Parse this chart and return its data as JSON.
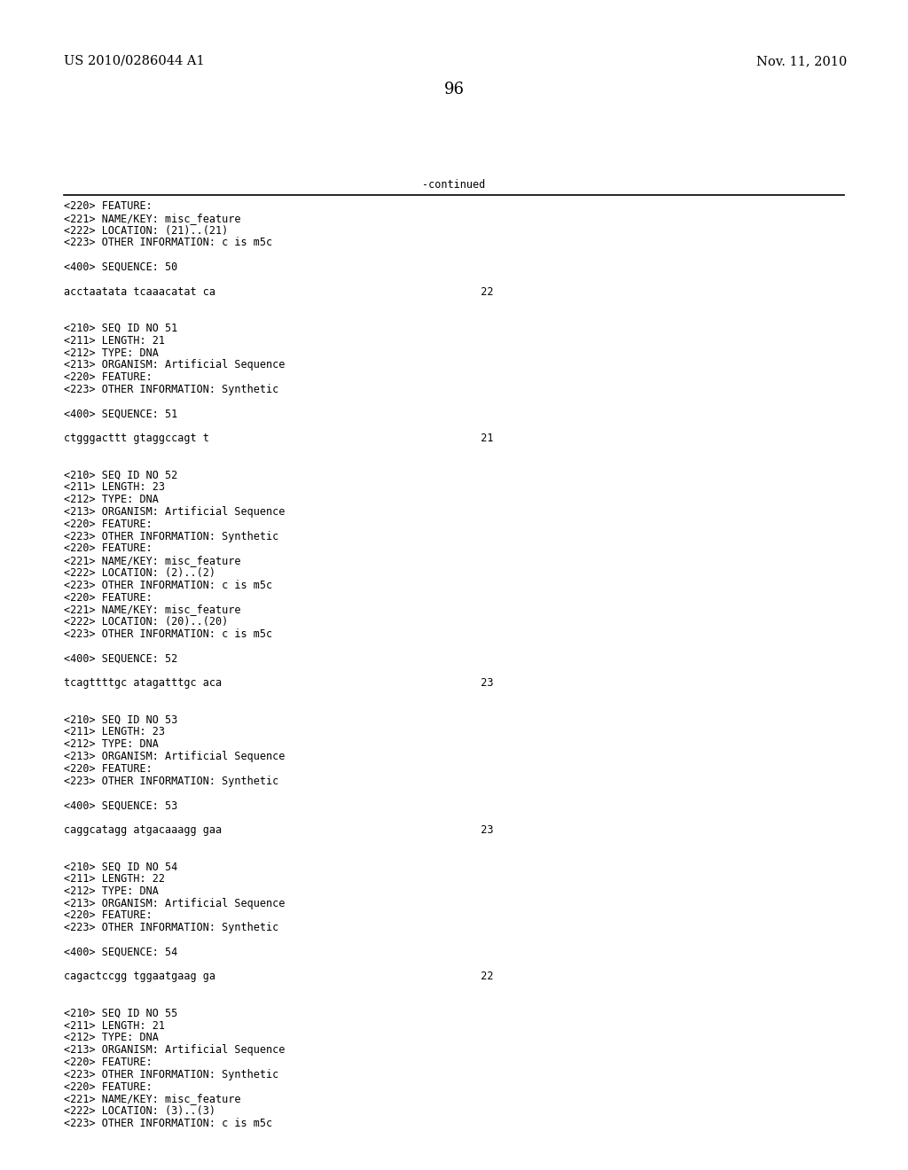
{
  "header_left": "US 2010/0286044 A1",
  "header_right": "Nov. 11, 2010",
  "page_number": "96",
  "continued_label": "-continued",
  "background_color": "#ffffff",
  "text_color": "#000000",
  "font_size_header": 10.5,
  "font_size_body": 8.5,
  "font_size_page": 13,
  "content_lines": [
    "<220> FEATURE:",
    "<221> NAME/KEY: misc_feature",
    "<222> LOCATION: (21)..(21)",
    "<223> OTHER INFORMATION: c is m5c",
    "",
    "<400> SEQUENCE: 50",
    "",
    "acctaatata tcaaacatat ca                                          22",
    "",
    "",
    "<210> SEQ ID NO 51",
    "<211> LENGTH: 21",
    "<212> TYPE: DNA",
    "<213> ORGANISM: Artificial Sequence",
    "<220> FEATURE:",
    "<223> OTHER INFORMATION: Synthetic",
    "",
    "<400> SEQUENCE: 51",
    "",
    "ctgggacttt gtaggccagt t                                           21",
    "",
    "",
    "<210> SEQ ID NO 52",
    "<211> LENGTH: 23",
    "<212> TYPE: DNA",
    "<213> ORGANISM: Artificial Sequence",
    "<220> FEATURE:",
    "<223> OTHER INFORMATION: Synthetic",
    "<220> FEATURE:",
    "<221> NAME/KEY: misc_feature",
    "<222> LOCATION: (2)..(2)",
    "<223> OTHER INFORMATION: c is m5c",
    "<220> FEATURE:",
    "<221> NAME/KEY: misc_feature",
    "<222> LOCATION: (20)..(20)",
    "<223> OTHER INFORMATION: c is m5c",
    "",
    "<400> SEQUENCE: 52",
    "",
    "tcagttttgc atagatttgc aca                                         23",
    "",
    "",
    "<210> SEQ ID NO 53",
    "<211> LENGTH: 23",
    "<212> TYPE: DNA",
    "<213> ORGANISM: Artificial Sequence",
    "<220> FEATURE:",
    "<223> OTHER INFORMATION: Synthetic",
    "",
    "<400> SEQUENCE: 53",
    "",
    "caggcatagg atgacaaagg gaa                                         23",
    "",
    "",
    "<210> SEQ ID NO 54",
    "<211> LENGTH: 22",
    "<212> TYPE: DNA",
    "<213> ORGANISM: Artificial Sequence",
    "<220> FEATURE:",
    "<223> OTHER INFORMATION: Synthetic",
    "",
    "<400> SEQUENCE: 54",
    "",
    "cagactccgg tggaatgaag ga                                          22",
    "",
    "",
    "<210> SEQ ID NO 55",
    "<211> LENGTH: 21",
    "<212> TYPE: DNA",
    "<213> ORGANISM: Artificial Sequence",
    "<220> FEATURE:",
    "<223> OTHER INFORMATION: Synthetic",
    "<220> FEATURE:",
    "<221> NAME/KEY: misc_feature",
    "<222> LOCATION: (3)..(3)",
    "<223> OTHER INFORMATION: c is m5c"
  ]
}
